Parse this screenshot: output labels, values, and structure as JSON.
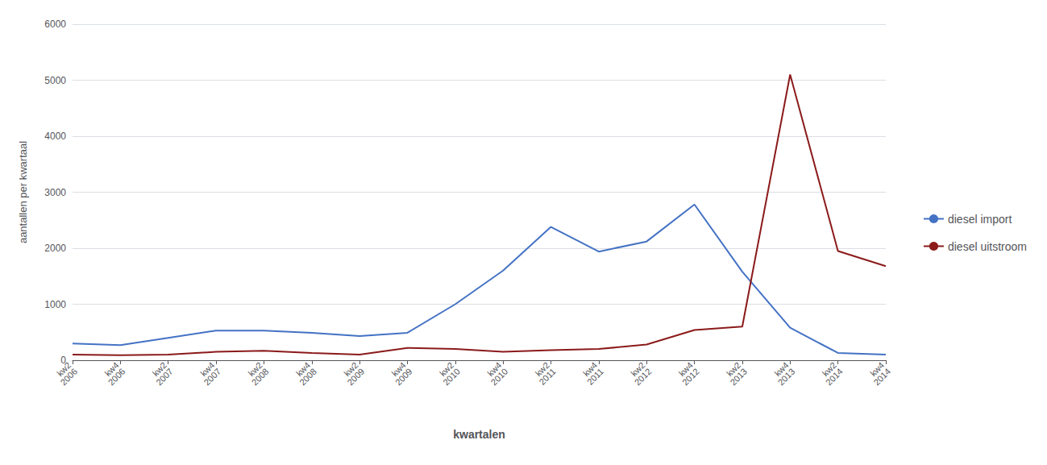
{
  "chart_data": {
    "type": "line",
    "xlabel": "kwartalen",
    "ylabel": "aantallen per kwartaal",
    "categories": [
      "kw2\n2006",
      "kw4\n2006",
      "kw2\n2007",
      "kw4\n2007",
      "kw2\n2008",
      "kw4\n2008",
      "kw2\n2009",
      "kw4\n2009",
      "kw2\n2010",
      "kw4\n2010",
      "kw2\n2011",
      "kw4\n2011",
      "kw2\n2012",
      "kw4\n2012",
      "kw2\n2013",
      "kw4\n2013",
      "kw2\n2014",
      "kw4\n2014"
    ],
    "series": [
      {
        "name": "diesel import",
        "color": "#4472C4",
        "values": [
          300,
          270,
          400,
          530,
          530,
          490,
          430,
          490,
          1000,
          1600,
          2380,
          1940,
          2120,
          2780,
          1580,
          580,
          130,
          100
        ]
      },
      {
        "name": "diesel uitstroom",
        "color": "#8B1A1A",
        "values": [
          100,
          90,
          100,
          150,
          170,
          130,
          100,
          220,
          200,
          150,
          180,
          200,
          280,
          540,
          600,
          5100,
          1950,
          1680
        ]
      }
    ],
    "ylim": [
      0,
      6000
    ],
    "yticks": [
      0,
      1000,
      2000,
      3000,
      4000,
      5000,
      6000
    ],
    "grid": true,
    "legend": "right"
  }
}
